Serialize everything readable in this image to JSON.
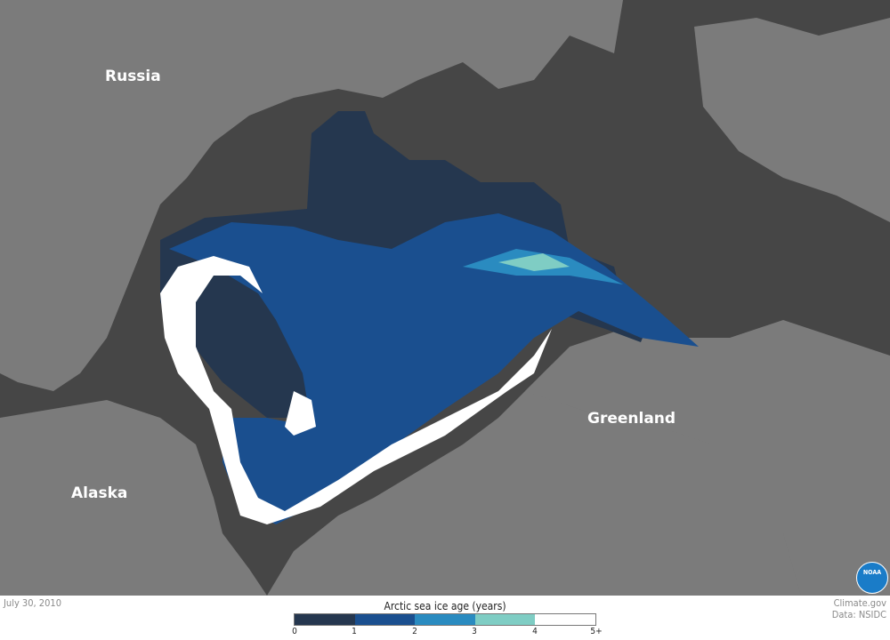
{
  "labels": {
    "russia": "Russia",
    "alaska": "Alaska",
    "greenland": "Greenland"
  },
  "date": "July 30, 2010",
  "credit": {
    "line1": "Climate.gov",
    "line2": "Data: NSIDC"
  },
  "logo": "NOAA",
  "legend": {
    "title": "Arctic sea ice age (years)",
    "ticks": [
      "0",
      "1",
      "2",
      "3",
      "4",
      "5+"
    ],
    "colors": [
      "#25374f",
      "#1a4f8f",
      "#2a8bc0",
      "#7fcdc4",
      "#ffffff"
    ]
  },
  "map_colors": {
    "ocean": "#464646",
    "land": "#7b7b7b"
  }
}
